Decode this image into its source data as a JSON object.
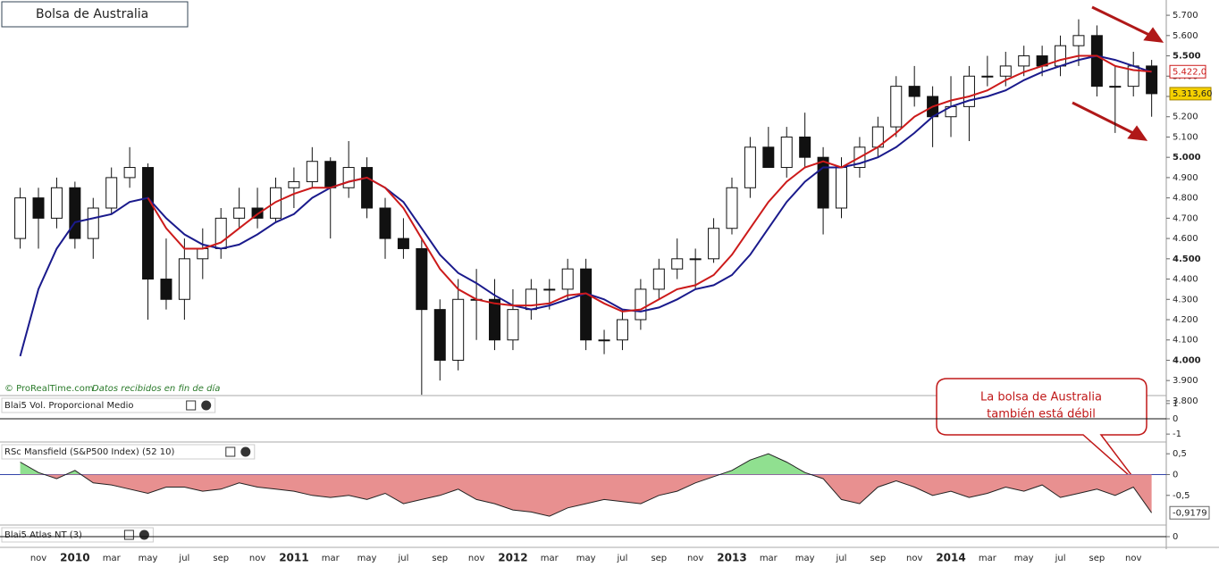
{
  "chart_data": {
    "type": "candlestick",
    "title": "Bolsa de Australia",
    "credit": "© ProRealTime.com",
    "credit_note": "Datos recibidos en fin de día",
    "annotation": [
      "La bolsa de Australia",
      "también está débil"
    ],
    "ylim": [
      3.76,
      5.74
    ],
    "yticks": [
      {
        "value": 3.8,
        "label": "3.800"
      },
      {
        "value": 3.9,
        "label": "3.900"
      },
      {
        "value": 4.0,
        "label": "4.000"
      },
      {
        "value": 4.1,
        "label": "4.100"
      },
      {
        "value": 4.2,
        "label": "4.200"
      },
      {
        "value": 4.3,
        "label": "4.300"
      },
      {
        "value": 4.4,
        "label": "4.400"
      },
      {
        "value": 4.5,
        "label": "4.500"
      },
      {
        "value": 4.6,
        "label": "4.600"
      },
      {
        "value": 4.7,
        "label": "4.700"
      },
      {
        "value": 4.8,
        "label": "4.800"
      },
      {
        "value": 4.9,
        "label": "4.900"
      },
      {
        "value": 5.0,
        "label": "5.000"
      },
      {
        "value": 5.1,
        "label": "5.100"
      },
      {
        "value": 5.2,
        "label": "5.200"
      },
      {
        "value": 5.3,
        "label": "5.300"
      },
      {
        "value": 5.4,
        "label": "5.400"
      },
      {
        "value": 5.5,
        "label": "5.500"
      },
      {
        "value": 5.6,
        "label": "5.600"
      },
      {
        "value": 5.7,
        "label": "5.700"
      }
    ],
    "xlabels": [
      "nov",
      "2010",
      "mar",
      "may",
      "jul",
      "sep",
      "nov",
      "2011",
      "mar",
      "may",
      "jul",
      "sep",
      "nov",
      "2012",
      "mar",
      "may",
      "jul",
      "sep",
      "nov",
      "2013",
      "mar",
      "may",
      "jul",
      "sep",
      "nov",
      "2014",
      "mar",
      "may",
      "jul",
      "sep",
      "nov"
    ],
    "open": [
      4.6,
      4.8,
      4.7,
      4.85,
      4.6,
      4.75,
      4.9,
      4.95,
      4.4,
      4.3,
      4.5,
      4.55,
      4.7,
      4.75,
      4.7,
      4.85,
      4.88,
      4.98,
      4.85,
      4.95,
      4.75,
      4.6,
      4.55,
      4.25,
      4.0,
      4.3,
      4.3,
      4.1,
      4.25,
      4.35,
      4.35,
      4.45,
      4.1,
      4.1,
      4.2,
      4.35,
      4.45,
      4.5,
      4.5,
      4.65,
      4.85,
      5.05,
      4.95,
      5.1,
      5.0,
      4.75,
      4.95,
      5.05,
      5.15,
      5.35,
      5.3,
      5.2,
      5.25,
      5.4,
      5.4,
      5.45,
      5.5,
      5.45,
      5.55,
      5.6,
      5.35,
      5.35,
      5.45
    ],
    "high": [
      4.85,
      4.85,
      4.9,
      4.88,
      4.8,
      4.95,
      5.05,
      4.97,
      4.6,
      4.6,
      4.65,
      4.75,
      4.85,
      4.85,
      4.9,
      4.95,
      5.05,
      5.0,
      5.08,
      5.0,
      4.8,
      4.7,
      4.6,
      4.3,
      4.4,
      4.45,
      4.4,
      4.35,
      4.4,
      4.4,
      4.5,
      4.5,
      4.15,
      4.25,
      4.4,
      4.5,
      4.6,
      4.55,
      4.7,
      4.9,
      5.1,
      5.15,
      5.15,
      5.22,
      5.05,
      5.0,
      5.1,
      5.2,
      5.4,
      5.45,
      5.35,
      5.4,
      5.45,
      5.5,
      5.52,
      5.55,
      5.55,
      5.6,
      5.68,
      5.65,
      5.45,
      5.52,
      5.48
    ],
    "low": [
      4.55,
      4.55,
      4.65,
      4.55,
      4.5,
      4.72,
      4.85,
      4.2,
      4.25,
      4.2,
      4.4,
      4.5,
      4.65,
      4.65,
      4.68,
      4.75,
      4.85,
      4.6,
      4.8,
      4.7,
      4.5,
      4.5,
      3.83,
      3.9,
      3.95,
      4.1,
      4.05,
      4.05,
      4.2,
      4.25,
      4.3,
      4.05,
      4.03,
      4.05,
      4.15,
      4.3,
      4.4,
      4.35,
      4.48,
      4.62,
      4.8,
      4.95,
      4.9,
      4.95,
      4.62,
      4.7,
      4.9,
      5.0,
      5.1,
      5.25,
      5.05,
      5.1,
      5.08,
      5.35,
      5.35,
      5.4,
      5.4,
      5.4,
      5.45,
      5.3,
      5.12,
      5.3,
      5.2
    ],
    "close": [
      4.8,
      4.7,
      4.85,
      4.6,
      4.75,
      4.9,
      4.95,
      4.4,
      4.3,
      4.5,
      4.55,
      4.7,
      4.75,
      4.7,
      4.85,
      4.88,
      4.98,
      4.85,
      4.95,
      4.75,
      4.6,
      4.55,
      4.25,
      4.0,
      4.3,
      4.3,
      4.1,
      4.25,
      4.35,
      4.35,
      4.45,
      4.1,
      4.1,
      4.2,
      4.35,
      4.45,
      4.5,
      4.5,
      4.65,
      4.85,
      5.05,
      4.95,
      5.1,
      5.0,
      4.75,
      4.95,
      5.05,
      5.15,
      5.35,
      5.3,
      5.2,
      5.25,
      5.4,
      5.4,
      5.45,
      5.5,
      5.45,
      5.55,
      5.6,
      5.35,
      5.35,
      5.45,
      5.3136
    ],
    "close_label": "5.313,60",
    "up_color": "#ffffff",
    "down_color": "#111111",
    "series": [
      {
        "color": "#1a1a8c",
        "values": [
          4.02,
          4.35,
          4.55,
          4.68,
          4.7,
          4.72,
          4.78,
          4.8,
          4.7,
          4.62,
          4.57,
          4.55,
          4.57,
          4.62,
          4.68,
          4.72,
          4.8,
          4.85,
          4.88,
          4.9,
          4.85,
          4.78,
          4.65,
          4.52,
          4.43,
          4.38,
          4.32,
          4.27,
          4.25,
          4.27,
          4.3,
          4.33,
          4.3,
          4.25,
          4.24,
          4.26,
          4.3,
          4.35,
          4.37,
          4.42,
          4.52,
          4.65,
          4.78,
          4.88,
          4.95,
          4.95,
          4.97,
          5.0,
          5.05,
          5.12,
          5.2,
          5.25,
          5.28,
          5.3,
          5.33,
          5.38,
          5.42,
          5.45,
          5.48,
          5.5,
          5.48,
          5.45,
          5.42
        ]
      },
      {
        "color": "#cc1a1a",
        "values": [
          null,
          null,
          null,
          null,
          null,
          null,
          null,
          4.8,
          4.65,
          4.55,
          4.55,
          4.58,
          4.65,
          4.72,
          4.78,
          4.82,
          4.85,
          4.85,
          4.88,
          4.9,
          4.85,
          4.75,
          4.6,
          4.45,
          4.35,
          4.3,
          4.28,
          4.27,
          4.27,
          4.28,
          4.32,
          4.33,
          4.28,
          4.24,
          4.25,
          4.3,
          4.35,
          4.37,
          4.42,
          4.52,
          4.65,
          4.78,
          4.88,
          4.95,
          4.98,
          4.95,
          5.0,
          5.05,
          5.12,
          5.2,
          5.25,
          5.28,
          5.3,
          5.33,
          5.38,
          5.42,
          5.45,
          5.48,
          5.5,
          5.5,
          5.45,
          5.43,
          5.422
        ],
        "last_label": "5.422,0"
      }
    ],
    "panels": [
      {
        "title": "Blai5 Vol. Proporcional Medio",
        "ylim": [
          -1.4,
          1.4
        ],
        "yticks": [
          1,
          0,
          -1
        ]
      },
      {
        "title": "RSc Mansfield (S&P500 Index) (52 10)",
        "ylim": [
          -1.17,
          0.74
        ],
        "yticks": [
          {
            "value": 0.5,
            "label": "0,5"
          },
          0,
          {
            "value": -0.5,
            "label": "-0,5"
          }
        ],
        "pos_color": "#90e090",
        "neg_color": "#e89090",
        "values": [
          0.3,
          0.05,
          -0.1,
          0.1,
          -0.2,
          -0.25,
          -0.35,
          -0.45,
          -0.3,
          -0.3,
          -0.4,
          -0.35,
          -0.2,
          -0.3,
          -0.35,
          -0.4,
          -0.5,
          -0.55,
          -0.5,
          -0.6,
          -0.45,
          -0.7,
          -0.6,
          -0.5,
          -0.35,
          -0.6,
          -0.7,
          -0.85,
          -0.9,
          -1.0,
          -0.8,
          -0.7,
          -0.6,
          -0.65,
          -0.7,
          -0.5,
          -0.4,
          -0.2,
          -0.05,
          0.1,
          0.35,
          0.5,
          0.3,
          0.05,
          -0.1,
          -0.6,
          -0.7,
          -0.3,
          -0.15,
          -0.3,
          -0.5,
          -0.4,
          -0.55,
          -0.45,
          -0.3,
          -0.4,
          -0.25,
          -0.55,
          -0.45,
          -0.35,
          -0.5,
          -0.3,
          -0.9179
        ],
        "last_label": "-0,9179"
      },
      {
        "title": "Blai5 Atlas NT (3)",
        "ylim": [
          -1,
          1
        ],
        "yticks": [
          0
        ]
      }
    ]
  }
}
